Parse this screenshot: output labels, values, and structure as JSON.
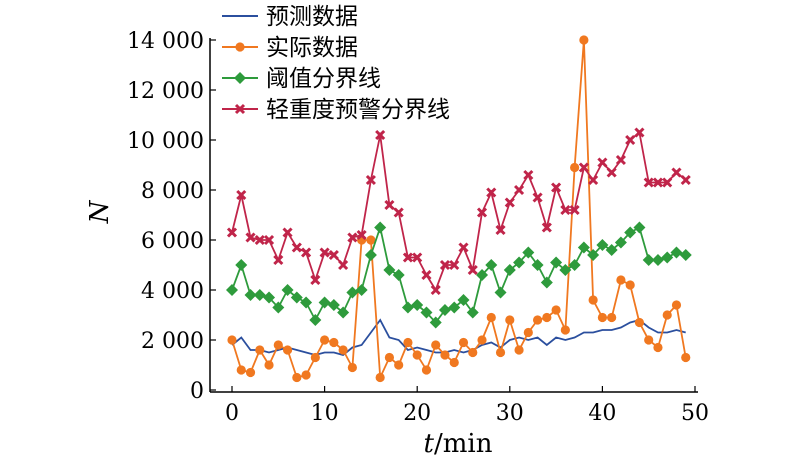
{
  "chart_data": {
    "type": "line",
    "title": "",
    "xlabel_italic": "t",
    "xlabel_rest": "/min",
    "ylabel": "N",
    "xlim": [
      0,
      50
    ],
    "ylim": [
      0,
      14000
    ],
    "x_ticks": [
      0,
      10,
      20,
      30,
      40,
      50
    ],
    "y_ticks": [
      0,
      2000,
      4000,
      6000,
      8000,
      10000,
      12000,
      14000
    ],
    "x_tick_labels": [
      "0",
      "10",
      "20",
      "30",
      "40",
      "50"
    ],
    "y_tick_labels": [
      "0",
      "2 000",
      "4 000",
      "6 000",
      "8 000",
      "10 000",
      "12 000",
      "14 000"
    ],
    "grid": false,
    "legend_position": "top-left",
    "x": [
      0,
      1,
      2,
      3,
      4,
      5,
      6,
      7,
      8,
      9,
      10,
      11,
      12,
      13,
      14,
      15,
      16,
      17,
      18,
      19,
      20,
      21,
      22,
      23,
      24,
      25,
      26,
      27,
      28,
      29,
      30,
      31,
      32,
      33,
      34,
      35,
      36,
      37,
      38,
      39,
      40,
      41,
      42,
      43,
      44,
      45,
      46,
      47,
      48,
      49
    ],
    "series": [
      {
        "name": "预测数据",
        "color": "#2b4f9e",
        "marker": "none",
        "values": [
          1800,
          2100,
          1600,
          1600,
          1500,
          1600,
          1700,
          1600,
          1500,
          1400,
          1500,
          1500,
          1400,
          1700,
          1800,
          2300,
          2800,
          2100,
          2000,
          1600,
          1700,
          1600,
          1500,
          1500,
          1600,
          1500,
          1600,
          1800,
          1900,
          1700,
          2000,
          2100,
          2000,
          2100,
          1800,
          2100,
          2000,
          2100,
          2300,
          2300,
          2400,
          2400,
          2500,
          2700,
          2800,
          2500,
          2300,
          2300,
          2400,
          2300
        ]
      },
      {
        "name": "实际数据",
        "color": "#f07820",
        "marker": "circle",
        "values": [
          2000,
          800,
          700,
          1600,
          1000,
          1800,
          1600,
          500,
          600,
          1300,
          2000,
          1900,
          1600,
          900,
          6000,
          6000,
          500,
          1300,
          1000,
          1900,
          1400,
          800,
          1800,
          1400,
          1100,
          1900,
          1500,
          2000,
          2900,
          1500,
          2800,
          1600,
          2300,
          2800,
          2900,
          3200,
          2400,
          8900,
          14000,
          3600,
          2900,
          2900,
          4400,
          4200,
          2700,
          2000,
          1700,
          3000,
          3400,
          1300
        ]
      },
      {
        "name": "阈值分界线",
        "color": "#2e9b3c",
        "marker": "diamond",
        "values": [
          4000,
          5000,
          3800,
          3800,
          3700,
          3300,
          4000,
          3700,
          3500,
          2800,
          3500,
          3400,
          3100,
          3900,
          4000,
          5400,
          6500,
          4800,
          4600,
          3300,
          3400,
          3100,
          2700,
          3200,
          3300,
          3600,
          3100,
          4600,
          5000,
          3900,
          4800,
          5100,
          5500,
          5000,
          4300,
          5100,
          4800,
          5000,
          5700,
          5400,
          5800,
          5600,
          5900,
          6300,
          6500,
          5200,
          5200,
          5300,
          5500,
          5400
        ]
      },
      {
        "name": "轻重度预警分界线",
        "color": "#c0254a",
        "marker": "cross",
        "values": [
          6300,
          7800,
          6100,
          6000,
          6000,
          5200,
          6300,
          5700,
          5500,
          4400,
          5500,
          5400,
          5000,
          6100,
          6200,
          8400,
          10200,
          7400,
          7100,
          5300,
          5300,
          4600,
          4000,
          5000,
          5000,
          5700,
          4800,
          7100,
          7900,
          6400,
          7500,
          8000,
          8600,
          7700,
          6500,
          8100,
          7200,
          7200,
          8900,
          8400,
          9100,
          8700,
          9200,
          10000,
          10300,
          8300,
          8300,
          8300,
          8700,
          8400
        ]
      }
    ]
  }
}
